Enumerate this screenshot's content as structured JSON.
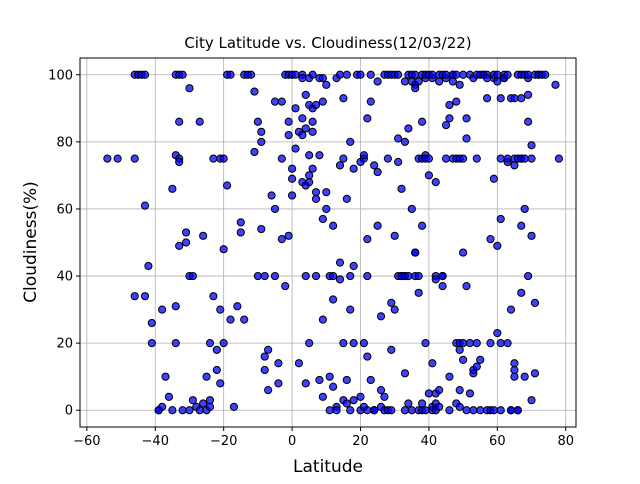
{
  "chart_data": {
    "type": "scatter",
    "title": "City Latitude vs. Cloudiness(12/03/22)",
    "xlabel": "Latitude",
    "ylabel": "Cloudiness(%)",
    "xlim": [
      -62,
      83
    ],
    "ylim": [
      -5,
      105
    ],
    "xticks": [
      -60,
      -40,
      -20,
      0,
      20,
      40,
      60,
      80
    ],
    "yticks": [
      0,
      20,
      40,
      60,
      80,
      100
    ],
    "grid": true,
    "colors": {
      "marker_fill": "#0000ff",
      "marker_edge": "#000000",
      "grid": "#b0b0b0"
    },
    "points": [
      [
        -54,
        75
      ],
      [
        -51,
        75
      ],
      [
        -46,
        100
      ],
      [
        -45,
        100
      ],
      [
        -44,
        100
      ],
      [
        -43,
        100
      ],
      [
        -46,
        75
      ],
      [
        -43,
        61
      ],
      [
        -42,
        43
      ],
      [
        -41,
        26
      ],
      [
        -41,
        20
      ],
      [
        -46,
        34
      ],
      [
        -43,
        34
      ],
      [
        -39,
        0
      ],
      [
        -38,
        1
      ],
      [
        -39,
        0
      ],
      [
        -37,
        10
      ],
      [
        -38,
        30
      ],
      [
        -36,
        4
      ],
      [
        -35,
        66
      ],
      [
        -35,
        0
      ],
      [
        -34,
        31
      ],
      [
        -34,
        20
      ],
      [
        -34,
        76
      ],
      [
        -33,
        75
      ],
      [
        -33,
        74
      ],
      [
        -33,
        86
      ],
      [
        -34,
        100
      ],
      [
        -33,
        100
      ],
      [
        -32,
        100
      ],
      [
        -33,
        49
      ],
      [
        -32,
        0
      ],
      [
        -31,
        53
      ],
      [
        -31,
        50
      ],
      [
        -30,
        0
      ],
      [
        -30,
        40
      ],
      [
        -29,
        40
      ],
      [
        -30,
        96
      ],
      [
        -29,
        3
      ],
      [
        -28,
        1
      ],
      [
        -27,
        0
      ],
      [
        -26,
        2
      ],
      [
        -27,
        86
      ],
      [
        -26,
        52
      ],
      [
        -25,
        0
      ],
      [
        -25,
        10
      ],
      [
        -24,
        20
      ],
      [
        -24,
        1
      ],
      [
        -24,
        3
      ],
      [
        -23,
        75
      ],
      [
        -23,
        34
      ],
      [
        -22,
        18
      ],
      [
        -22,
        12
      ],
      [
        -21,
        8
      ],
      [
        -21,
        30
      ],
      [
        -20,
        20
      ],
      [
        -20,
        48
      ],
      [
        -21,
        75
      ],
      [
        -20,
        75
      ],
      [
        -19,
        67
      ],
      [
        -19,
        100
      ],
      [
        -18,
        100
      ],
      [
        -17,
        1
      ],
      [
        -18,
        27
      ],
      [
        -16,
        31
      ],
      [
        -15,
        53
      ],
      [
        -15,
        56
      ],
      [
        -14,
        27
      ],
      [
        -14,
        100
      ],
      [
        -13,
        100
      ],
      [
        -12,
        100
      ],
      [
        -11,
        95
      ],
      [
        -11,
        77
      ],
      [
        -10,
        86
      ],
      [
        -9,
        83
      ],
      [
        -9,
        80
      ],
      [
        -10,
        40
      ],
      [
        -9,
        54
      ],
      [
        -8,
        40
      ],
      [
        -8,
        16
      ],
      [
        -8,
        12
      ],
      [
        -7,
        6
      ],
      [
        -7,
        18
      ],
      [
        -6,
        64
      ],
      [
        -5,
        60
      ],
      [
        -5,
        92
      ],
      [
        -5,
        40
      ],
      [
        -4,
        8
      ],
      [
        -4,
        14
      ],
      [
        -3,
        75
      ],
      [
        -3,
        51
      ],
      [
        -3,
        92
      ],
      [
        -2,
        37
      ],
      [
        -2,
        100
      ],
      [
        -1,
        100
      ],
      [
        -1,
        86
      ],
      [
        -1,
        82
      ],
      [
        -1,
        52
      ],
      [
        0,
        100
      ],
      [
        0,
        72
      ],
      [
        0,
        69
      ],
      [
        0,
        64
      ],
      [
        1,
        100
      ],
      [
        1,
        90
      ],
      [
        1,
        78
      ],
      [
        2,
        83
      ],
      [
        2,
        14
      ],
      [
        3,
        100
      ],
      [
        3,
        99
      ],
      [
        3,
        87
      ],
      [
        3,
        82
      ],
      [
        3,
        68
      ],
      [
        4,
        8
      ],
      [
        4,
        40
      ],
      [
        4,
        67
      ],
      [
        4,
        84
      ],
      [
        4,
        94
      ],
      [
        5,
        99
      ],
      [
        5,
        91
      ],
      [
        5,
        20
      ],
      [
        5,
        76
      ],
      [
        5,
        68
      ],
      [
        5,
        70
      ],
      [
        6,
        83
      ],
      [
        6,
        90
      ],
      [
        6,
        72
      ],
      [
        6,
        86
      ],
      [
        6,
        100
      ],
      [
        7,
        91
      ],
      [
        7,
        63
      ],
      [
        7,
        65
      ],
      [
        7,
        40
      ],
      [
        8,
        9
      ],
      [
        8,
        76
      ],
      [
        8,
        99
      ],
      [
        9,
        57
      ],
      [
        9,
        27
      ],
      [
        9,
        99
      ],
      [
        9,
        4
      ],
      [
        9,
        92
      ],
      [
        10,
        60
      ],
      [
        10,
        65
      ],
      [
        10,
        97
      ],
      [
        11,
        0
      ],
      [
        11,
        40
      ],
      [
        11,
        10
      ],
      [
        12,
        40
      ],
      [
        12,
        55
      ],
      [
        12,
        7
      ],
      [
        12,
        33
      ],
      [
        13,
        99
      ],
      [
        13,
        1
      ],
      [
        13,
        0
      ],
      [
        14,
        39
      ],
      [
        14,
        100
      ],
      [
        14,
        73
      ],
      [
        14,
        44
      ],
      [
        15,
        93
      ],
      [
        15,
        20
      ],
      [
        15,
        75
      ],
      [
        15,
        3
      ],
      [
        16,
        100
      ],
      [
        16,
        2
      ],
      [
        16,
        63
      ],
      [
        16,
        9
      ],
      [
        17,
        0
      ],
      [
        17,
        40
      ],
      [
        17,
        80
      ],
      [
        17,
        30
      ],
      [
        18,
        43
      ],
      [
        18,
        72
      ],
      [
        18,
        3
      ],
      [
        18,
        20
      ],
      [
        19,
        100
      ],
      [
        20,
        0
      ],
      [
        20,
        100
      ],
      [
        20,
        4
      ],
      [
        20,
        74
      ],
      [
        21,
        20
      ],
      [
        21,
        75
      ],
      [
        21,
        76
      ],
      [
        21,
        1
      ],
      [
        22,
        0
      ],
      [
        22,
        16
      ],
      [
        22,
        40
      ],
      [
        22,
        87
      ],
      [
        22,
        51
      ],
      [
        23,
        92
      ],
      [
        23,
        100
      ],
      [
        23,
        9
      ],
      [
        24,
        0
      ],
      [
        24,
        73
      ],
      [
        24,
        0
      ],
      [
        24,
        0
      ],
      [
        25,
        55
      ],
      [
        25,
        98
      ],
      [
        25,
        71
      ],
      [
        26,
        1
      ],
      [
        26,
        6
      ],
      [
        26,
        28
      ],
      [
        27,
        0
      ],
      [
        27,
        4
      ],
      [
        27,
        100
      ],
      [
        28,
        100
      ],
      [
        28,
        0
      ],
      [
        28,
        75
      ],
      [
        29,
        100
      ],
      [
        29,
        0
      ],
      [
        29,
        18
      ],
      [
        29,
        32
      ],
      [
        30,
        52
      ],
      [
        30,
        30
      ],
      [
        30,
        100
      ],
      [
        31,
        40
      ],
      [
        31,
        100
      ],
      [
        31,
        81
      ],
      [
        31,
        74
      ],
      [
        32,
        40
      ],
      [
        32,
        40
      ],
      [
        32,
        66
      ],
      [
        33,
        0
      ],
      [
        33,
        40
      ],
      [
        33,
        80
      ],
      [
        33,
        98
      ],
      [
        33,
        11
      ],
      [
        33,
        40
      ],
      [
        34,
        100
      ],
      [
        34,
        40
      ],
      [
        34,
        2
      ],
      [
        34,
        84
      ],
      [
        35,
        0
      ],
      [
        35,
        98
      ],
      [
        35,
        100
      ],
      [
        35,
        60
      ],
      [
        36,
        47
      ],
      [
        36,
        100
      ],
      [
        36,
        97
      ],
      [
        36,
        96
      ],
      [
        36,
        47
      ],
      [
        36,
        40
      ],
      [
        37,
        98
      ],
      [
        37,
        35
      ],
      [
        37,
        75
      ],
      [
        37,
        0
      ],
      [
        37,
        40
      ],
      [
        38,
        100
      ],
      [
        38,
        75
      ],
      [
        38,
        55
      ],
      [
        38,
        86
      ],
      [
        38,
        0
      ],
      [
        38,
        2
      ],
      [
        39,
        0
      ],
      [
        39,
        99
      ],
      [
        39,
        76
      ],
      [
        39,
        75
      ],
      [
        39,
        100
      ],
      [
        39,
        20
      ],
      [
        40,
        70
      ],
      [
        40,
        5
      ],
      [
        40,
        100
      ],
      [
        40,
        75
      ],
      [
        41,
        0
      ],
      [
        41,
        1
      ],
      [
        41,
        99
      ],
      [
        41,
        100
      ],
      [
        41,
        14
      ],
      [
        42,
        40
      ],
      [
        42,
        39
      ],
      [
        42,
        68
      ],
      [
        42,
        5
      ],
      [
        42,
        2
      ],
      [
        42,
        0
      ],
      [
        43,
        100
      ],
      [
        43,
        6
      ],
      [
        43,
        98
      ],
      [
        43,
        1
      ],
      [
        44,
        100
      ],
      [
        44,
        37
      ],
      [
        44,
        40
      ],
      [
        44,
        40
      ],
      [
        45,
        85
      ],
      [
        45,
        99
      ],
      [
        45,
        75
      ],
      [
        45,
        100
      ],
      [
        46,
        87
      ],
      [
        46,
        10
      ],
      [
        46,
        91
      ],
      [
        46,
        0
      ],
      [
        47,
        100
      ],
      [
        47,
        100
      ],
      [
        47,
        75
      ],
      [
        47,
        98
      ],
      [
        48,
        100
      ],
      [
        48,
        92
      ],
      [
        48,
        75
      ],
      [
        48,
        20
      ],
      [
        48,
        2
      ],
      [
        49,
        1
      ],
      [
        49,
        97
      ],
      [
        49,
        20
      ],
      [
        49,
        6
      ],
      [
        49,
        18
      ],
      [
        49,
        75
      ],
      [
        50,
        100
      ],
      [
        50,
        75
      ],
      [
        50,
        20
      ],
      [
        50,
        15
      ],
      [
        50,
        47
      ],
      [
        51,
        87
      ],
      [
        51,
        37
      ],
      [
        51,
        81
      ],
      [
        51,
        0
      ],
      [
        52,
        20
      ],
      [
        52,
        100
      ],
      [
        52,
        5
      ],
      [
        53,
        99
      ],
      [
        53,
        0
      ],
      [
        53,
        11
      ],
      [
        53,
        12
      ],
      [
        54,
        100
      ],
      [
        54,
        75
      ],
      [
        54,
        20
      ],
      [
        54,
        13
      ],
      [
        55,
        100
      ],
      [
        55,
        0
      ],
      [
        55,
        15
      ],
      [
        56,
        100
      ],
      [
        56,
        100
      ],
      [
        57,
        100
      ],
      [
        57,
        99
      ],
      [
        57,
        93
      ],
      [
        57,
        0
      ],
      [
        58,
        51
      ],
      [
        58,
        20
      ],
      [
        58,
        0
      ],
      [
        59,
        99
      ],
      [
        59,
        100
      ],
      [
        59,
        69
      ],
      [
        59,
        0
      ],
      [
        60,
        100
      ],
      [
        60,
        49
      ],
      [
        60,
        98
      ],
      [
        60,
        23
      ],
      [
        61,
        93
      ],
      [
        61,
        75
      ],
      [
        61,
        57
      ],
      [
        61,
        20
      ],
      [
        61,
        0
      ],
      [
        62,
        99
      ],
      [
        62,
        100
      ],
      [
        62,
        99
      ],
      [
        63,
        74
      ],
      [
        63,
        75
      ],
      [
        63,
        20
      ],
      [
        63,
        100
      ],
      [
        64,
        0
      ],
      [
        64,
        93
      ],
      [
        64,
        30
      ],
      [
        64,
        0
      ],
      [
        65,
        75
      ],
      [
        65,
        93
      ],
      [
        65,
        73
      ],
      [
        65,
        12
      ],
      [
        65,
        14
      ],
      [
        65,
        10
      ],
      [
        66,
        75
      ],
      [
        66,
        100
      ],
      [
        66,
        0
      ],
      [
        66,
        0
      ],
      [
        67,
        75
      ],
      [
        67,
        93
      ],
      [
        67,
        55
      ],
      [
        67,
        35
      ],
      [
        67,
        100
      ],
      [
        67,
        75
      ],
      [
        68,
        60
      ],
      [
        68,
        75
      ],
      [
        68,
        10
      ],
      [
        68,
        100
      ],
      [
        69,
        99
      ],
      [
        69,
        40
      ],
      [
        69,
        100
      ],
      [
        69,
        94
      ],
      [
        69,
        86
      ],
      [
        70,
        79
      ],
      [
        70,
        75
      ],
      [
        70,
        3
      ],
      [
        70,
        52
      ],
      [
        71,
        100
      ],
      [
        71,
        32
      ],
      [
        71,
        11
      ],
      [
        72,
        100
      ],
      [
        72,
        100
      ],
      [
        73,
        100
      ],
      [
        74,
        100
      ],
      [
        77,
        97
      ],
      [
        78,
        75
      ]
    ]
  }
}
